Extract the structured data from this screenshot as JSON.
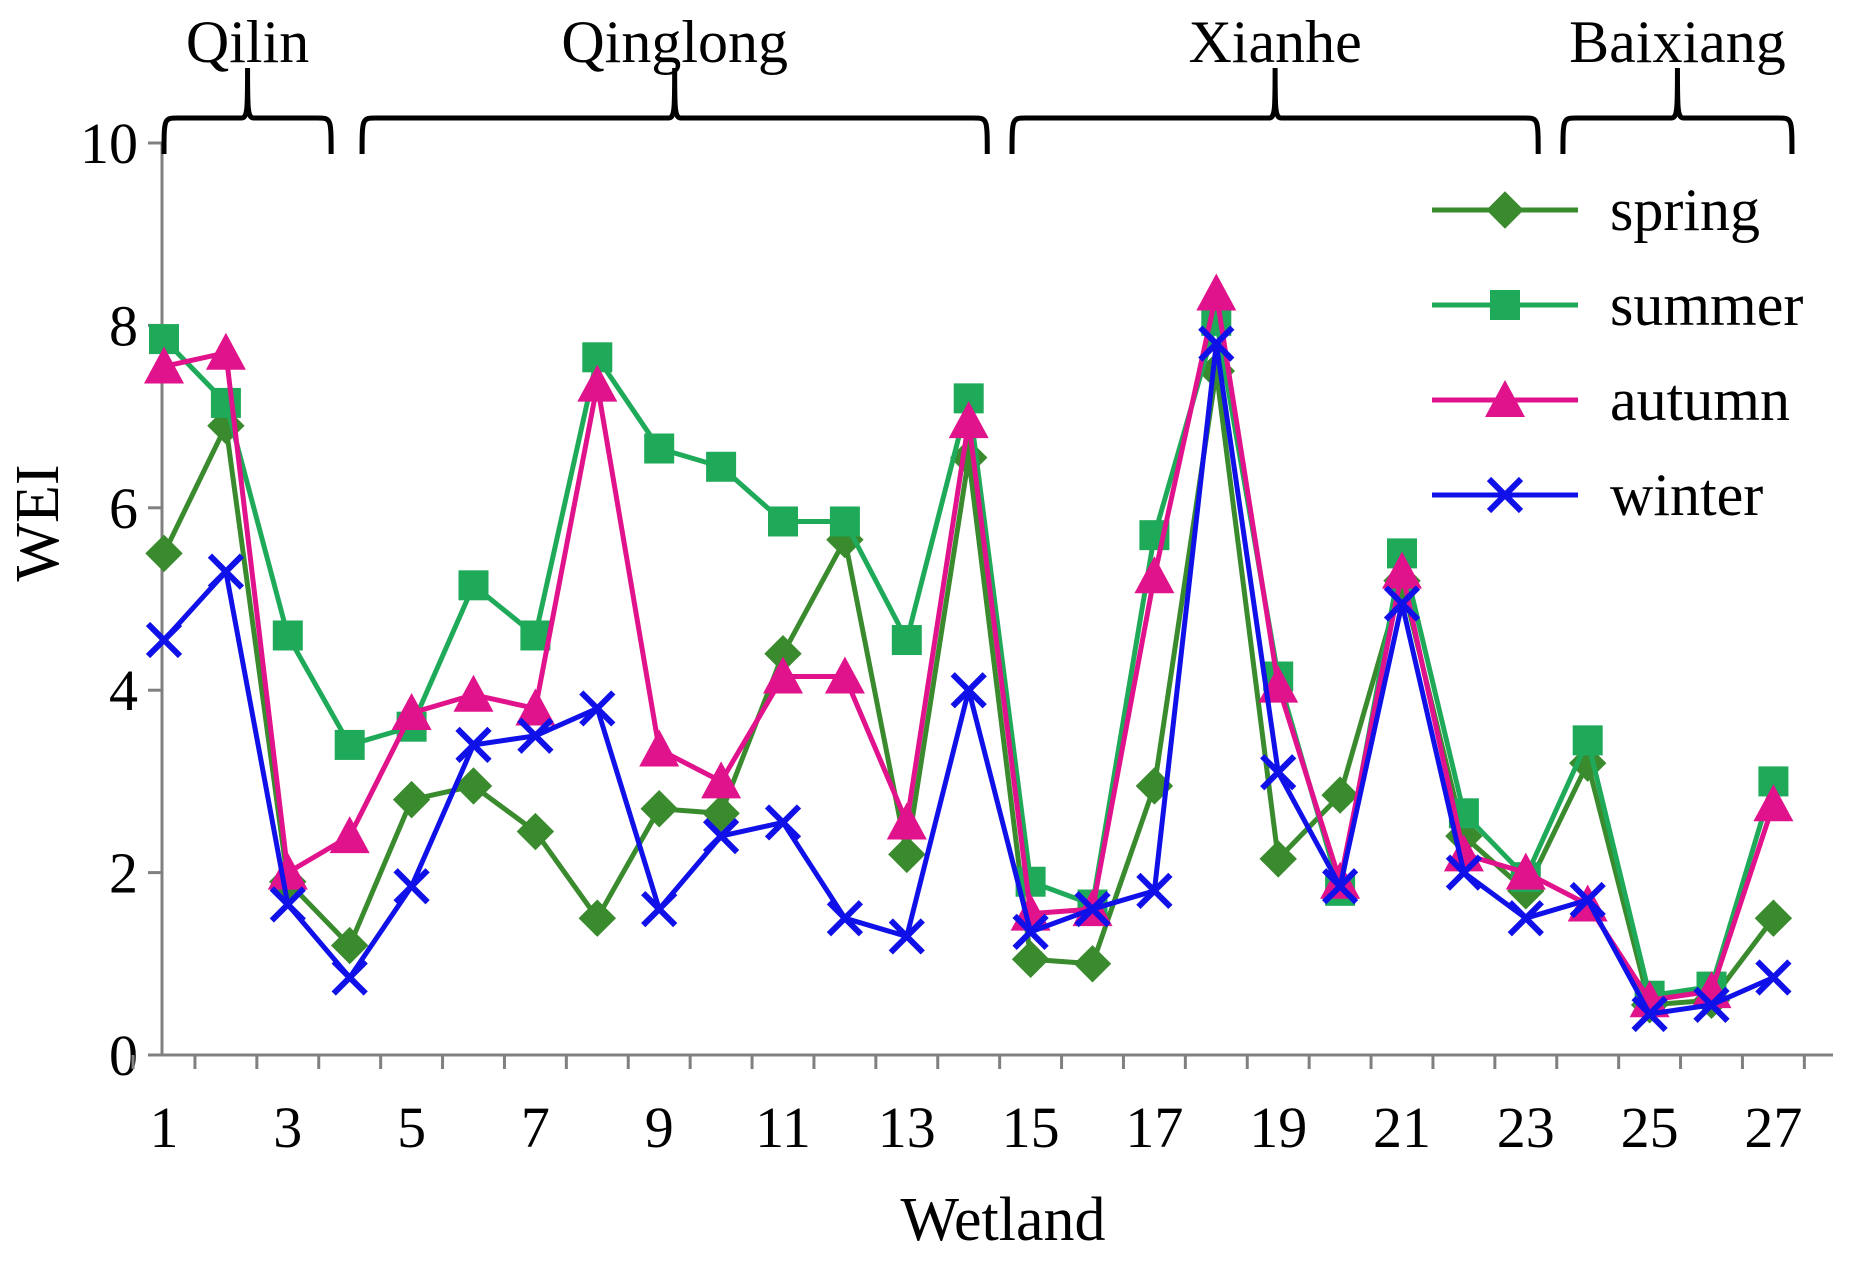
{
  "chart_data": {
    "type": "line",
    "title": "",
    "xlabel": "Wetland",
    "ylabel": "WEI",
    "ylim": [
      0,
      10
    ],
    "yticks": [
      0,
      2,
      4,
      6,
      8,
      10
    ],
    "xlim": [
      0.5,
      27.5
    ],
    "x": [
      1,
      2,
      3,
      4,
      5,
      6,
      7,
      8,
      9,
      10,
      11,
      12,
      13,
      14,
      15,
      16,
      17,
      18,
      19,
      20,
      21,
      22,
      23,
      24,
      25,
      26,
      27
    ],
    "xtick_labels": [
      1,
      3,
      5,
      7,
      9,
      11,
      13,
      15,
      17,
      19,
      21,
      23,
      25,
      27
    ],
    "groups": [
      {
        "name": "Qilin",
        "from": 1,
        "to": 3.7
      },
      {
        "name": "Qinglong",
        "from": 4.2,
        "to": 14.3
      },
      {
        "name": "Xianhe",
        "from": 14.7,
        "to": 23.2
      },
      {
        "name": "Baixiang",
        "from": 23.6,
        "to": 27.3
      }
    ],
    "legend_position": "top-right",
    "series": [
      {
        "name": "spring",
        "color": "#3a8a2e",
        "marker": "diamond",
        "values": [
          5.5,
          6.9,
          1.9,
          1.2,
          2.8,
          2.95,
          2.45,
          1.5,
          2.7,
          2.65,
          4.4,
          5.65,
          2.2,
          6.55,
          1.05,
          1.0,
          2.95,
          7.5,
          2.15,
          2.85,
          5.2,
          2.4,
          1.8,
          3.2,
          0.55,
          0.6,
          1.5
        ]
      },
      {
        "name": "summer",
        "color": "#1faa5a",
        "marker": "square",
        "values": [
          7.85,
          7.15,
          4.6,
          3.4,
          3.6,
          5.15,
          4.6,
          7.65,
          6.65,
          6.45,
          5.85,
          5.85,
          4.55,
          7.2,
          1.9,
          1.65,
          5.7,
          8.05,
          4.15,
          1.8,
          5.5,
          2.65,
          1.95,
          3.45,
          0.65,
          0.75,
          3.0
        ]
      },
      {
        "name": "autumn",
        "color": "#e0128c",
        "marker": "triangle",
        "values": [
          7.55,
          7.7,
          2.0,
          2.4,
          3.75,
          3.95,
          3.8,
          7.35,
          3.35,
          3.0,
          4.15,
          4.15,
          2.55,
          6.95,
          1.55,
          1.6,
          5.25,
          8.35,
          4.05,
          1.9,
          5.3,
          2.2,
          2.0,
          1.65,
          0.6,
          0.7,
          2.75
        ]
      },
      {
        "name": "winter",
        "color": "#1010e8",
        "marker": "x",
        "values": [
          4.55,
          5.3,
          1.65,
          0.85,
          1.85,
          3.4,
          3.5,
          3.8,
          1.6,
          2.4,
          2.55,
          1.5,
          1.3,
          4.0,
          1.35,
          1.6,
          1.8,
          7.8,
          3.1,
          1.85,
          4.95,
          2.0,
          1.5,
          1.7,
          0.45,
          0.55,
          0.85
        ]
      }
    ]
  }
}
